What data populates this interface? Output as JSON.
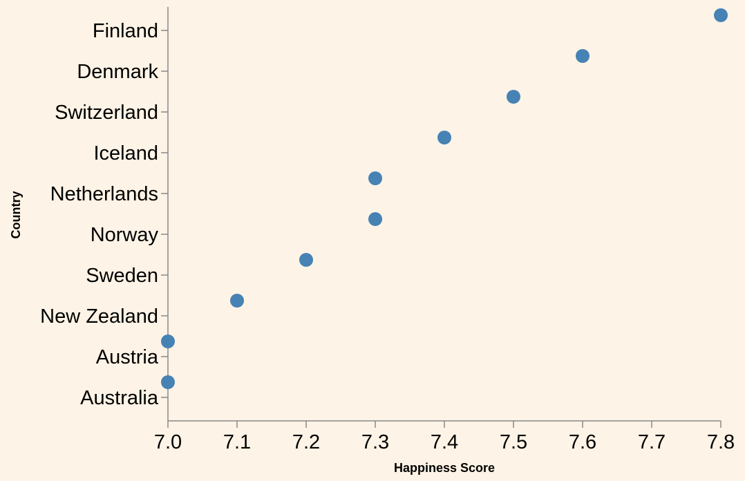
{
  "chart_data": {
    "type": "scatter",
    "title": "",
    "xlabel": "Happiness Score",
    "ylabel": "Country",
    "xlim": [
      7.0,
      7.8
    ],
    "x_ticks": [
      "7.0",
      "7.1",
      "7.2",
      "7.3",
      "7.4",
      "7.5",
      "7.6",
      "7.7",
      "7.8"
    ],
    "categories": [
      "Finland",
      "Denmark",
      "Switzerland",
      "Iceland",
      "Netherlands",
      "Norway",
      "Sweden",
      "New Zealand",
      "Austria",
      "Australia"
    ],
    "points": [
      {
        "country": "Finland",
        "score": 7.8
      },
      {
        "country": "Denmark",
        "score": 7.6
      },
      {
        "country": "Switzerland",
        "score": 7.5
      },
      {
        "country": "Iceland",
        "score": 7.4
      },
      {
        "country": "Netherlands",
        "score": 7.3
      },
      {
        "country": "Norway",
        "score": 7.3
      },
      {
        "country": "Sweden",
        "score": 7.2
      },
      {
        "country": "New Zealand",
        "score": 7.1
      },
      {
        "country": "Austria",
        "score": 7.0
      },
      {
        "country": "Australia",
        "score": 7.0
      }
    ],
    "grid": false,
    "colors": {
      "background": "#fdf3e6",
      "point": "#4682b4",
      "axis": "#888888",
      "text": "#000000"
    }
  }
}
